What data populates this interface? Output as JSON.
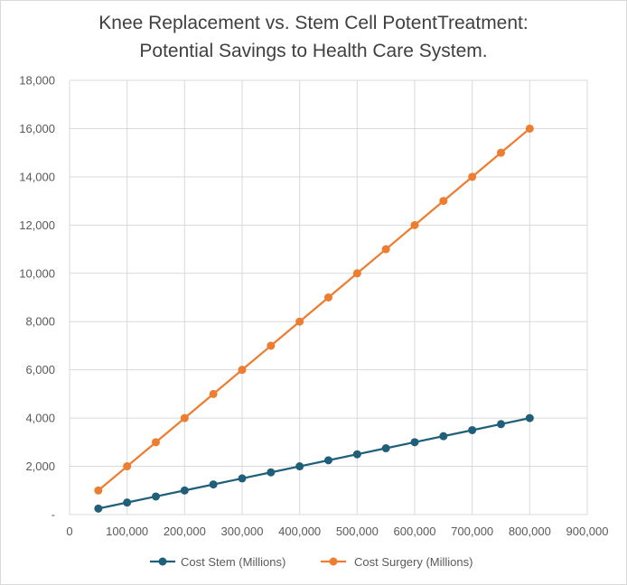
{
  "colors": {
    "series_stem": "#1f5f7a",
    "series_surgery": "#ed7d31",
    "grid": "#d9d9d9",
    "text": "#595959",
    "title": "#404040"
  },
  "chart_data": {
    "type": "line",
    "title_lines": [
      "Knee Replacement vs. Stem Cell PotentTreatment:",
      "Potential Savings to Health Care System."
    ],
    "xlabel": "",
    "ylabel": "",
    "xlim": [
      0,
      900000
    ],
    "ylim": [
      0,
      18000
    ],
    "grid": true,
    "legend_position": "bottom",
    "x_tick_labels": [
      "0",
      "100,000",
      "200,000",
      "300,000",
      "400,000",
      "500,000",
      "600,000",
      "700,000",
      "800,000",
      "900,000"
    ],
    "x_tick_values": [
      0,
      100000,
      200000,
      300000,
      400000,
      500000,
      600000,
      700000,
      800000,
      900000
    ],
    "y_tick_labels": [
      "-",
      "2,000",
      "4,000",
      "6,000",
      "8,000",
      "10,000",
      "12,000",
      "14,000",
      "16,000",
      "18,000"
    ],
    "y_tick_values": [
      0,
      2000,
      4000,
      6000,
      8000,
      10000,
      12000,
      14000,
      16000,
      18000
    ],
    "x": [
      50000,
      100000,
      150000,
      200000,
      250000,
      300000,
      350000,
      400000,
      450000,
      500000,
      550000,
      600000,
      650000,
      700000,
      750000,
      800000
    ],
    "series": [
      {
        "name": "Cost Stem (Millions)",
        "color": "#1f5f7a",
        "values": [
          250,
          500,
          750,
          1000,
          1250,
          1500,
          1750,
          2000,
          2250,
          2500,
          2750,
          3000,
          3250,
          3500,
          3750,
          4000
        ]
      },
      {
        "name": "Cost Surgery (Millions)",
        "color": "#ed7d31",
        "values": [
          1000,
          2000,
          3000,
          4000,
          5000,
          6000,
          7000,
          8000,
          9000,
          10000,
          11000,
          12000,
          13000,
          14000,
          15000,
          16000
        ]
      }
    ]
  }
}
